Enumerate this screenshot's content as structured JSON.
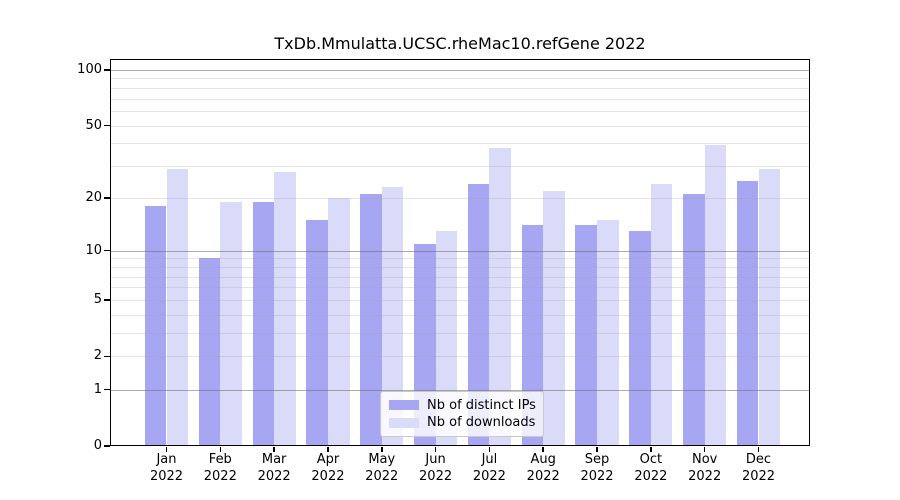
{
  "title": "TxDb.Mmulatta.UCSC.rheMac10.refGene 2022",
  "chart_data": {
    "type": "bar",
    "title": "TxDb.Mmulatta.UCSC.rheMac10.refGene 2022",
    "y_scale": "log1p",
    "year": "2022",
    "months": [
      "Jan",
      "Feb",
      "Mar",
      "Apr",
      "May",
      "Jun",
      "Jul",
      "Aug",
      "Sep",
      "Oct",
      "Nov",
      "Dec"
    ],
    "categories": [
      "Jan 2022",
      "Feb 2022",
      "Mar 2022",
      "Apr 2022",
      "May 2022",
      "Jun 2022",
      "Jul 2022",
      "Aug 2022",
      "Sep 2022",
      "Oct 2022",
      "Nov 2022",
      "Dec 2022"
    ],
    "series": [
      {
        "name": "Nb of distinct IPs",
        "color": "#a6a6f2",
        "values": [
          18,
          9,
          19,
          15,
          21,
          11,
          24,
          14,
          14,
          13,
          21,
          25
        ]
      },
      {
        "name": "Nb of downloads",
        "color": "#dadaf9",
        "values": [
          29,
          19,
          28,
          20,
          23,
          13,
          38,
          22,
          15,
          24,
          39,
          29
        ]
      }
    ],
    "y_ticks": [
      0,
      1,
      2,
      5,
      10,
      20,
      50,
      100
    ],
    "grid_major": [
      1,
      10,
      100
    ],
    "grid_minor": [
      2,
      3,
      4,
      5,
      6,
      7,
      8,
      9,
      20,
      30,
      40,
      50,
      60,
      70,
      80,
      90
    ],
    "ylim": [
      0,
      115
    ],
    "grid": "on",
    "xlabel": "",
    "ylabel": "",
    "legend_position": "inside lower center"
  },
  "legend": {
    "items": [
      {
        "label": "Nb of distinct IPs",
        "color": "#a6a6f2"
      },
      {
        "label": "Nb of downloads",
        "color": "#dadaf9"
      }
    ]
  },
  "colors": {
    "background": "#ffffff",
    "frame": "#000000",
    "grid_major": "#b6b6b6",
    "grid_minor": "#e7e7e7",
    "text": "#000000"
  }
}
